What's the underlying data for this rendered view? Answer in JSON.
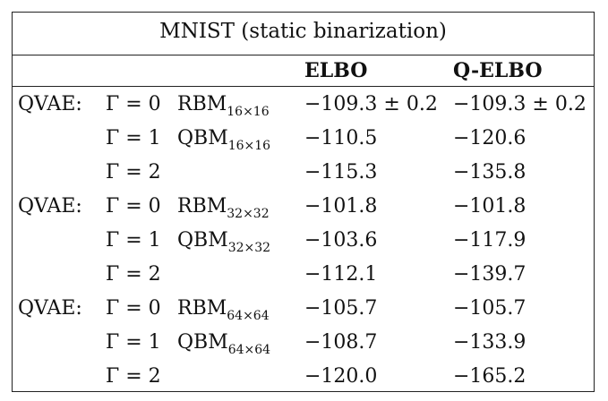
{
  "table": {
    "caption": "MNIST (static binarization)",
    "headers": {
      "elbo": "ELBO",
      "qelbo": "Q-ELBO"
    },
    "rows": [
      {
        "model": "QVAE:",
        "gamma": "Γ = 0",
        "machine": "RBM",
        "size": "16×16",
        "elbo": "−109.3 ± 0.2",
        "qelbo": "−109.3 ± 0.2"
      },
      {
        "model": "",
        "gamma": "Γ = 1",
        "machine": "QBM",
        "size": "16×16",
        "elbo": "−110.5",
        "qelbo": "−120.6"
      },
      {
        "model": "",
        "gamma": "Γ = 2",
        "machine": "",
        "size": "",
        "elbo": "−115.3",
        "qelbo": "−135.8"
      },
      {
        "model": "QVAE:",
        "gamma": "Γ = 0",
        "machine": "RBM",
        "size": "32×32",
        "elbo": "−101.8",
        "qelbo": "−101.8"
      },
      {
        "model": "",
        "gamma": "Γ = 1",
        "machine": "QBM",
        "size": "32×32",
        "elbo": "−103.6",
        "qelbo": "−117.9"
      },
      {
        "model": "",
        "gamma": "Γ = 2",
        "machine": "",
        "size": "",
        "elbo": "−112.1",
        "qelbo": "−139.7"
      },
      {
        "model": "QVAE:",
        "gamma": "Γ = 0",
        "machine": "RBM",
        "size": "64×64",
        "elbo": "−105.7",
        "qelbo": "−105.7"
      },
      {
        "model": "",
        "gamma": "Γ = 1",
        "machine": "QBM",
        "size": "64×64",
        "elbo": "−108.7",
        "qelbo": "−133.9"
      },
      {
        "model": "",
        "gamma": "Γ = 2",
        "machine": "",
        "size": "",
        "elbo": "−120.0",
        "qelbo": "−165.2"
      }
    ]
  }
}
